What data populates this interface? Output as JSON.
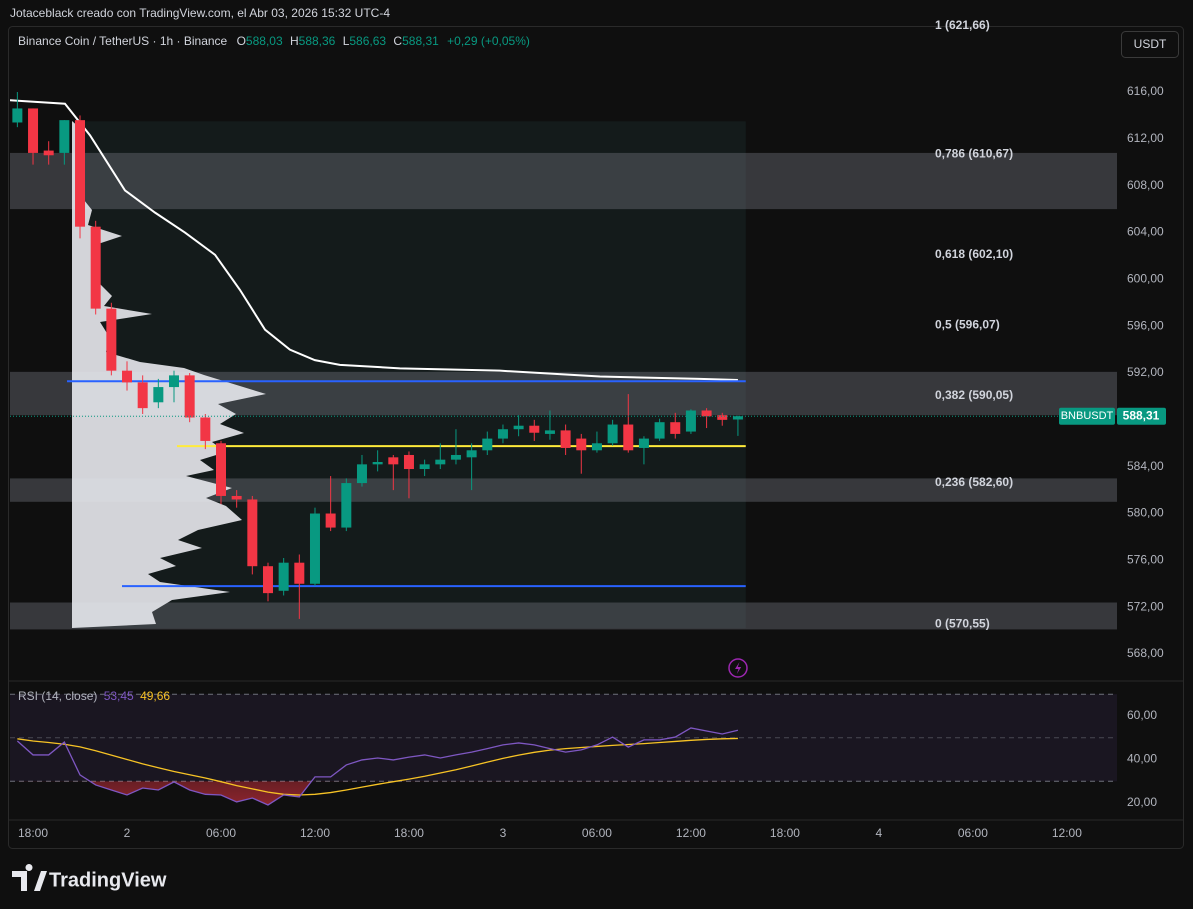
{
  "header": {
    "attribution": "Jotaceblack creado con TradingView.com, el Abr 03, 2026 15:32 UTC-4",
    "symbol": "Binance Coin / TetherUS · 1h · Binance",
    "ohlc": [
      {
        "key": "O",
        "value": "588,03"
      },
      {
        "key": "H",
        "value": "588,36"
      },
      {
        "key": "L",
        "value": "586,63"
      },
      {
        "key": "C",
        "value": "588,31"
      }
    ],
    "change": "+0,29 (+0,05%)",
    "currency": "USDT"
  },
  "chart_data": [
    {
      "type": "candlestick",
      "xlim": [
        -1.47,
        69.2
      ],
      "xticks": [
        {
          "value": 0,
          "label": "18:00"
        },
        {
          "value": 6,
          "label": "2"
        },
        {
          "value": 12,
          "label": "06:00"
        },
        {
          "value": 18,
          "label": "12:00"
        },
        {
          "value": 24,
          "label": "18:00"
        },
        {
          "value": 30,
          "label": "3"
        },
        {
          "value": 36,
          "label": "06:00"
        },
        {
          "value": 42,
          "label": "12:00"
        },
        {
          "value": 48,
          "label": "18:00"
        },
        {
          "value": 54,
          "label": "4"
        },
        {
          "value": 60,
          "label": "06:00"
        },
        {
          "value": 66,
          "label": "12:00"
        }
      ],
      "ylim": [
        565.78,
        621.47
      ],
      "yticks": [
        {
          "value": 568,
          "label": "568,00"
        },
        {
          "value": 572,
          "label": "572,00"
        },
        {
          "value": 576,
          "label": "576,00"
        },
        {
          "value": 580,
          "label": "580,00"
        },
        {
          "value": 584,
          "label": "584,00"
        },
        {
          "value": 588,
          "label": "588,00"
        },
        {
          "value": 592,
          "label": "592,00"
        },
        {
          "value": 596,
          "label": "596,00"
        },
        {
          "value": 600,
          "label": "600,00"
        },
        {
          "value": 604,
          "label": "604,00"
        },
        {
          "value": 608,
          "label": "608,00"
        },
        {
          "value": 612,
          "label": "612,00"
        },
        {
          "value": 616,
          "label": "616,00"
        }
      ],
      "up_color": "#089981",
      "down_color": "#f23645",
      "x": [
        -1,
        0,
        1,
        2,
        3,
        4,
        5,
        6,
        7,
        8,
        9,
        10,
        11,
        12,
        13,
        14,
        15,
        16,
        17,
        18,
        19,
        20,
        21,
        22,
        23,
        24,
        25,
        26,
        27,
        28,
        29,
        30,
        31,
        32,
        33,
        34,
        35,
        36,
        37,
        38,
        39,
        40,
        41,
        42,
        43,
        44,
        45
      ],
      "open": [
        613.4,
        614.6,
        611.0,
        610.8,
        613.6,
        604.5,
        597.5,
        592.2,
        591.2,
        589.5,
        590.8,
        591.8,
        588.2,
        586.0,
        581.5,
        581.2,
        575.5,
        573.4,
        575.8,
        574.0,
        580.0,
        578.8,
        582.6,
        584.2,
        584.8,
        585.0,
        583.8,
        584.2,
        584.6,
        584.8,
        585.4,
        586.4,
        587.2,
        587.5,
        586.8,
        587.1,
        586.4,
        585.4,
        586.0,
        587.6,
        585.6,
        586.4,
        587.8,
        587.0,
        588.8,
        588.4,
        588.03
      ],
      "high": [
        616.0,
        614.6,
        611.8,
        613.6,
        614.0,
        605.0,
        598.0,
        593.0,
        591.8,
        591.5,
        592.2,
        592.0,
        588.5,
        586.2,
        582.0,
        581.5,
        575.8,
        576.2,
        576.5,
        580.5,
        583.2,
        583.0,
        585.0,
        585.4,
        585.0,
        585.3,
        584.6,
        586.0,
        587.2,
        586.0,
        587.0,
        587.6,
        588.4,
        588.0,
        588.8,
        587.6,
        586.8,
        587.0,
        588.0,
        590.2,
        586.6,
        588.1,
        588.6,
        588.9,
        589.0,
        588.6,
        588.36
      ],
      "low": [
        613.0,
        609.8,
        609.8,
        609.8,
        603.5,
        597.0,
        591.8,
        590.5,
        588.5,
        589.0,
        589.5,
        587.8,
        585.5,
        580.8,
        580.5,
        574.8,
        572.5,
        573.0,
        571.0,
        573.8,
        578.5,
        578.5,
        582.3,
        583.6,
        582.0,
        581.3,
        583.2,
        583.8,
        584.2,
        582.0,
        585.0,
        586.0,
        586.6,
        586.2,
        586.3,
        585.0,
        583.4,
        585.2,
        585.8,
        585.2,
        584.2,
        586.2,
        586.4,
        586.8,
        587.3,
        587.5,
        586.63
      ],
      "close": [
        614.6,
        610.8,
        610.6,
        613.6,
        604.5,
        597.5,
        592.2,
        591.2,
        589.0,
        590.8,
        591.8,
        588.2,
        586.2,
        581.5,
        581.2,
        575.5,
        573.2,
        575.8,
        574.0,
        580.0,
        578.8,
        582.6,
        584.2,
        584.4,
        584.2,
        583.8,
        584.2,
        584.6,
        585.0,
        585.4,
        586.4,
        587.2,
        587.5,
        586.9,
        587.1,
        585.6,
        585.4,
        586.0,
        587.6,
        585.4,
        586.4,
        587.8,
        586.8,
        588.8,
        588.3,
        588.0,
        588.31
      ],
      "lines": [
        {
          "color": "#ffffff",
          "x": [
            -1.47,
            2.04,
            3.64,
            5.87,
            7.79,
            9.7,
            11.62,
            13.21,
            14.81,
            16.4,
            17.99,
            19.59,
            23.42,
            29.8,
            36.19,
            42.57,
            45
          ],
          "values": [
            615.3,
            615.0,
            612.3,
            607.6,
            605.7,
            604.0,
            602.1,
            599.1,
            595.7,
            594.0,
            593.1,
            592.7,
            592.4,
            592.2,
            591.7,
            591.5,
            591.4
          ]
        }
      ],
      "levels": [
        {
          "value": 591.3,
          "color": "#2962ff",
          "x": [
            2.17,
            45.5
          ]
        },
        {
          "value": 585.76,
          "color": "#ffeb3b",
          "x": [
            9.19,
            45.5
          ]
        },
        {
          "value": 573.8,
          "color": "#2962ff",
          "x": [
            5.68,
            45.5
          ]
        }
      ],
      "fib": [
        {
          "value": 621.66,
          "label": "1 (621,66)"
        },
        {
          "value": 610.67,
          "label": "0,786 (610,67)"
        },
        {
          "value": 602.1,
          "label": "0,618 (602,10)"
        },
        {
          "value": 596.07,
          "label": "0,5 (596,07)"
        },
        {
          "value": 590.05,
          "label": "0,382 (590,05)"
        },
        {
          "value": 582.6,
          "label": "0,236 (582,60)"
        },
        {
          "value": 570.55,
          "label": "0 (570,55)"
        }
      ],
      "zones": [
        [
          606.0,
          610.8
        ],
        [
          588.4,
          592.1
        ],
        [
          581.0,
          583.0
        ],
        [
          570.1,
          572.4
        ]
      ],
      "range_box": {
        "x": [
          2.5,
          45.5
        ],
        "y": [
          570.2,
          613.5
        ]
      },
      "last_price": {
        "name": "BNBUSDT",
        "value": 588.31,
        "label": "588,31"
      }
    },
    {
      "type": "rsi",
      "title": "RSI (14, close)",
      "ylim": [
        12.2,
        75.6
      ],
      "yticks": [
        {
          "value": 20,
          "label": "20,00"
        },
        {
          "value": 40,
          "label": "40,00"
        },
        {
          "value": 60,
          "label": "60,00"
        }
      ],
      "bands": [
        30,
        50,
        70
      ],
      "x": [
        -1,
        0,
        1,
        2,
        3,
        4,
        5,
        6,
        7,
        8,
        9,
        10,
        11,
        12,
        13,
        14,
        15,
        16,
        17,
        18,
        19,
        20,
        21,
        22,
        23,
        24,
        25,
        26,
        27,
        28,
        29,
        30,
        31,
        32,
        33,
        34,
        35,
        36,
        37,
        38,
        39,
        40,
        41,
        42,
        43,
        44,
        45
      ],
      "series": [
        {
          "color": "#7e57c2",
          "legend_value": "53,45",
          "values": [
            48.5,
            42.1,
            42.1,
            48.0,
            32.9,
            28.3,
            26.0,
            23.7,
            26.9,
            26.0,
            29.7,
            26.0,
            24.0,
            23.7,
            20.5,
            22.3,
            19.1,
            23.7,
            22.8,
            32.0,
            32.0,
            37.5,
            39.8,
            40.7,
            39.8,
            41.1,
            42.1,
            40.7,
            42.1,
            43.4,
            45.0,
            46.7,
            47.6,
            46.7,
            45.0,
            43.4,
            44.4,
            46.7,
            50.3,
            45.7,
            49.0,
            49.0,
            50.3,
            54.5,
            53.1,
            51.7,
            53.45
          ]
        },
        {
          "color": "#f7c325",
          "legend_value": "49,66",
          "values": [
            49.5,
            48.5,
            47.8,
            47.0,
            45.8,
            44.0,
            42.0,
            40.0,
            38.0,
            36.2,
            34.5,
            33.0,
            31.5,
            29.8,
            28.0,
            26.5,
            25.0,
            24.0,
            23.7,
            24.0,
            24.8,
            26.0,
            27.3,
            28.6,
            29.8,
            31.0,
            32.3,
            33.8,
            35.3,
            37.0,
            38.8,
            40.5,
            42.0,
            43.3,
            44.3,
            45.0,
            45.5,
            46.0,
            46.5,
            46.9,
            47.3,
            47.8,
            48.3,
            48.8,
            49.2,
            49.5,
            49.66
          ]
        }
      ]
    }
  ],
  "footer": {
    "brand": "TradingView"
  }
}
